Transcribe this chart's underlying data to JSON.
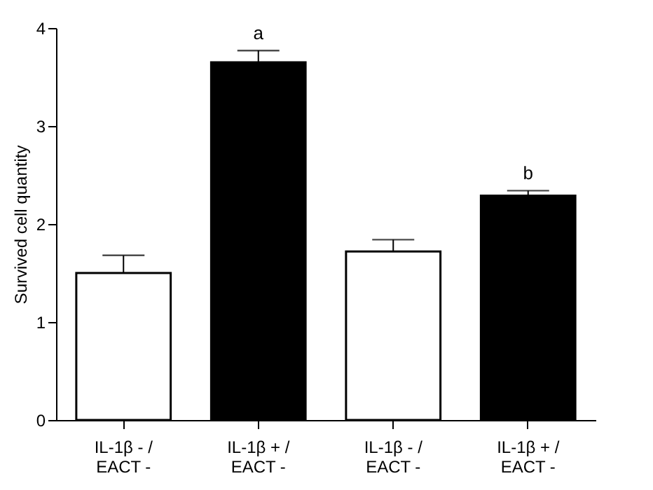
{
  "chart_data": {
    "type": "bar",
    "ylabel": "Survived cell quantity",
    "categories": [
      "IL-1β - / EACT -",
      "IL-1β + / EACT -",
      "IL-1β - / EACT -",
      "IL-1β + / EACT -"
    ],
    "values": [
      1.5,
      3.65,
      1.72,
      2.29
    ],
    "errors": [
      0.18,
      0.12,
      0.12,
      0.05
    ],
    "colors": [
      "#ffffff",
      "#000000",
      "#ffffff",
      "#000000"
    ],
    "ylim": [
      0,
      4
    ],
    "yticks": [
      0,
      1,
      2,
      3,
      4
    ],
    "grid": false,
    "annotations": [
      {
        "text": "a",
        "x": "IL-1β + / EACT -",
        "y": 3.77
      },
      {
        "text": "b",
        "y": 2.34
      }
    ]
  }
}
